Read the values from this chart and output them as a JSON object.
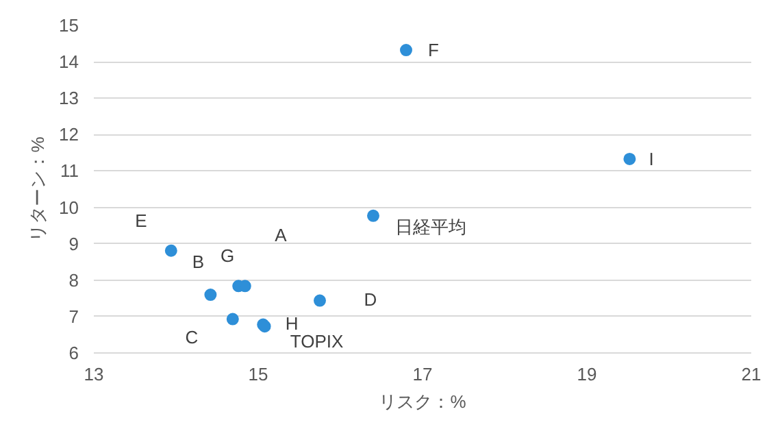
{
  "chart_data": {
    "type": "scatter",
    "xlabel": "リスク：%",
    "ylabel": "リターン：%",
    "x": [
      13.94,
      14.42,
      14.76,
      14.84,
      15.75,
      14.69,
      15.06,
      15.08,
      16.8,
      19.52,
      16.4
    ],
    "series": [
      {
        "color": "#2e8fd8",
        "values": [
          8.81,
          7.6,
          7.84,
          7.84,
          7.44,
          6.93,
          6.78,
          6.73,
          14.32,
          11.33,
          9.77
        ]
      }
    ],
    "annotations": [
      {
        "text": "E",
        "x": 13.94,
        "y": 8.81
      },
      {
        "text": "B",
        "x": 14.42,
        "y": 7.6
      },
      {
        "text": "G",
        "x": 14.76,
        "y": 7.84
      },
      {
        "text": "A",
        "x": 14.84,
        "y": 7.84
      },
      {
        "text": "D",
        "x": 15.75,
        "y": 7.44
      },
      {
        "text": "C",
        "x": 14.69,
        "y": 6.93
      },
      {
        "text": "H",
        "x": 15.06,
        "y": 6.78
      },
      {
        "text": "TOPIX",
        "x": 15.08,
        "y": 6.73
      },
      {
        "text": "F",
        "x": 16.8,
        "y": 14.32
      },
      {
        "text": "I",
        "x": 19.52,
        "y": 11.33
      },
      {
        "text": "日経平均",
        "x": 16.4,
        "y": 9.77
      }
    ],
    "xlim": [
      13,
      21
    ],
    "xticks": [
      13,
      15,
      17,
      19,
      21
    ],
    "ylim": [
      6,
      15
    ],
    "yticks": [
      6,
      7,
      8,
      9,
      10,
      11,
      12,
      13,
      14,
      15
    ],
    "grid": "y",
    "marker": "circle"
  }
}
